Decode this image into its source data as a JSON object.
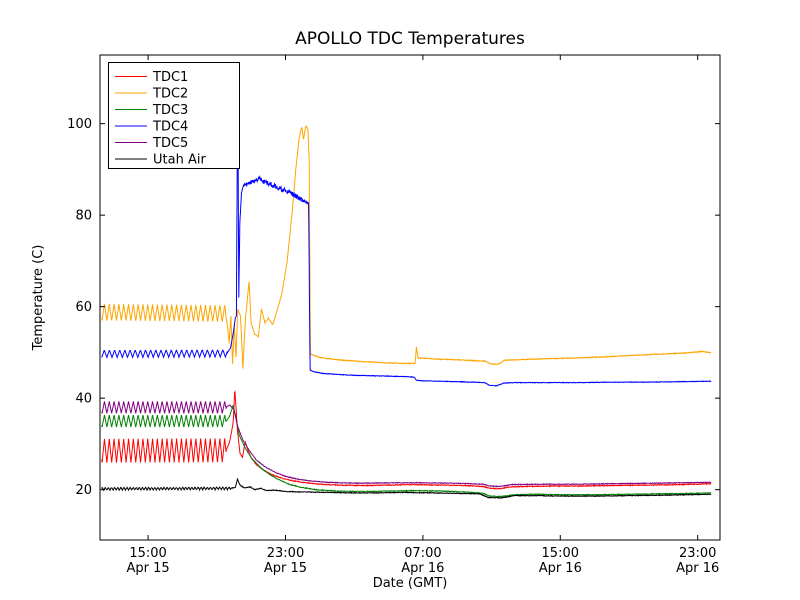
{
  "chart_data": {
    "type": "line",
    "title": "APOLLO TDC Temperatures",
    "xlabel": "Date (GMT)",
    "ylabel": "Temperature (C)",
    "xlim": [
      12.2,
      48.3
    ],
    "ylim": [
      9,
      115
    ],
    "x_unit": "hours since Apr 15 00:00 GMT",
    "grid": false,
    "legend_position": "upper left",
    "x_ticks": [
      {
        "hour": 15,
        "time": "15:00",
        "date": "Apr 15"
      },
      {
        "hour": 23,
        "time": "23:00",
        "date": "Apr 15"
      },
      {
        "hour": 31,
        "time": "07:00",
        "date": "Apr 16"
      },
      {
        "hour": 39,
        "time": "15:00",
        "date": "Apr 16"
      },
      {
        "hour": 47,
        "time": "23:00",
        "date": "Apr 16"
      }
    ],
    "y_ticks": [
      20,
      40,
      60,
      80,
      100
    ],
    "series": [
      {
        "name": "TDC1",
        "color": "#ff0000",
        "oscillation": {
          "until": 19.55,
          "amplitude": 2.6,
          "period": 0.28
        },
        "noise": [
          {
            "from": 19.55,
            "to": 47.8,
            "amp": 0.08
          }
        ],
        "anchors": [
          [
            12.3,
            28.5
          ],
          [
            19.55,
            28.6
          ],
          [
            19.75,
            30.5
          ],
          [
            19.95,
            34.5
          ],
          [
            20.05,
            42
          ],
          [
            20.2,
            33
          ],
          [
            20.35,
            28
          ],
          [
            20.5,
            27
          ],
          [
            20.65,
            30.5
          ],
          [
            20.8,
            28.8
          ],
          [
            21.0,
            27
          ],
          [
            21.3,
            25.5
          ],
          [
            21.7,
            24.3
          ],
          [
            22.2,
            23.3
          ],
          [
            22.8,
            22.5
          ],
          [
            23.5,
            21.9
          ],
          [
            24.2,
            21.5
          ],
          [
            25.0,
            21.2
          ],
          [
            26.0,
            21.0
          ],
          [
            27.5,
            20.9
          ],
          [
            29.0,
            21.0
          ],
          [
            30.5,
            21.1
          ],
          [
            32.0,
            21.0
          ],
          [
            33.5,
            20.9
          ],
          [
            34.5,
            20.7
          ],
          [
            34.9,
            20.3
          ],
          [
            35.5,
            20.2
          ],
          [
            36.1,
            20.6
          ],
          [
            37.0,
            20.7
          ],
          [
            38.5,
            20.8
          ],
          [
            40.0,
            20.8
          ],
          [
            42.0,
            20.9
          ],
          [
            44.0,
            21.0
          ],
          [
            46.0,
            21.1
          ],
          [
            47.8,
            21.3
          ]
        ]
      },
      {
        "name": "TDC2",
        "color": "#ffa500",
        "oscillation": {
          "until": 19.5,
          "amplitude": 1.8,
          "period": 0.28
        },
        "noise": [
          {
            "from": 19.5,
            "to": 47.8,
            "amp": 0.08
          }
        ],
        "anchors": [
          [
            12.3,
            58.8
          ],
          [
            19.5,
            58.5
          ],
          [
            19.62,
            56
          ],
          [
            19.72,
            52
          ],
          [
            19.82,
            58
          ],
          [
            19.92,
            47.5
          ],
          [
            20.02,
            56
          ],
          [
            20.12,
            49
          ],
          [
            20.22,
            59.5
          ],
          [
            20.38,
            58
          ],
          [
            20.52,
            46.5
          ],
          [
            20.66,
            57
          ],
          [
            20.88,
            65.5
          ],
          [
            21.0,
            56.5
          ],
          [
            21.2,
            54
          ],
          [
            21.42,
            53.5
          ],
          [
            21.6,
            59.5
          ],
          [
            21.8,
            56.5
          ],
          [
            22.0,
            57.5
          ],
          [
            22.25,
            56
          ],
          [
            22.5,
            59
          ],
          [
            22.8,
            63
          ],
          [
            23.1,
            70
          ],
          [
            23.4,
            81
          ],
          [
            23.6,
            90
          ],
          [
            23.8,
            97
          ],
          [
            23.95,
            99.3
          ],
          [
            24.05,
            96.5
          ],
          [
            24.18,
            99.5
          ],
          [
            24.3,
            99
          ],
          [
            24.38,
            92
          ],
          [
            24.45,
            49.6
          ],
          [
            25.0,
            48.9
          ],
          [
            26.0,
            48.4
          ],
          [
            27.0,
            48.1
          ],
          [
            28.0,
            47.9
          ],
          [
            29.0,
            47.7
          ],
          [
            30.0,
            47.6
          ],
          [
            30.55,
            47.6
          ],
          [
            30.62,
            51.2
          ],
          [
            30.72,
            48.8
          ],
          [
            31.2,
            48.7
          ],
          [
            32.0,
            48.5
          ],
          [
            33.0,
            48.4
          ],
          [
            34.0,
            48.2
          ],
          [
            34.6,
            48.1
          ],
          [
            34.95,
            47.5
          ],
          [
            35.4,
            47.4
          ],
          [
            35.75,
            48.3
          ],
          [
            36.5,
            48.4
          ],
          [
            38.0,
            48.6
          ],
          [
            40.0,
            48.8
          ],
          [
            42.0,
            49.1
          ],
          [
            44.0,
            49.5
          ],
          [
            46.0,
            49.8
          ],
          [
            47.3,
            50.2
          ],
          [
            47.8,
            49.9
          ]
        ]
      },
      {
        "name": "TDC3",
        "color": "#008000",
        "oscillation": {
          "until": 19.55,
          "amplitude": 1.3,
          "period": 0.28
        },
        "noise": [
          {
            "from": 19.55,
            "to": 47.8,
            "amp": 0.07
          }
        ],
        "anchors": [
          [
            12.3,
            35.0
          ],
          [
            19.55,
            35.0
          ],
          [
            19.75,
            36.0
          ],
          [
            19.95,
            38.5
          ],
          [
            20.1,
            36.0
          ],
          [
            20.3,
            32.0
          ],
          [
            20.6,
            29.5
          ],
          [
            21.0,
            27.0
          ],
          [
            21.5,
            25.0
          ],
          [
            22.0,
            23.5
          ],
          [
            22.6,
            22.2
          ],
          [
            23.2,
            21.2
          ],
          [
            23.9,
            20.5
          ],
          [
            24.8,
            20.0
          ],
          [
            26.0,
            19.7
          ],
          [
            27.5,
            19.6
          ],
          [
            29.0,
            19.7
          ],
          [
            30.5,
            19.8
          ],
          [
            32.0,
            19.7
          ],
          [
            33.5,
            19.5
          ],
          [
            34.5,
            19.2
          ],
          [
            34.9,
            18.6
          ],
          [
            35.6,
            18.5
          ],
          [
            36.3,
            18.9
          ],
          [
            37.5,
            19.0
          ],
          [
            39.0,
            18.9
          ],
          [
            41.0,
            18.9
          ],
          [
            43.0,
            19.0
          ],
          [
            45.0,
            19.1
          ],
          [
            47.0,
            19.2
          ],
          [
            47.8,
            19.3
          ]
        ]
      },
      {
        "name": "TDC4",
        "color": "#0000ff",
        "oscillation": {
          "until": 19.6,
          "amplitude": 0.8,
          "period": 0.3
        },
        "noise": [
          {
            "from": 20.44,
            "to": 24.35,
            "amp": 0.5
          },
          {
            "from": 24.43,
            "to": 47.8,
            "amp": 0.06
          }
        ],
        "anchors": [
          [
            12.3,
            49.7
          ],
          [
            19.6,
            49.8
          ],
          [
            19.8,
            51.0
          ],
          [
            19.95,
            54.0
          ],
          [
            20.08,
            57.5
          ],
          [
            20.14,
            58.0
          ],
          [
            20.17,
            78.0
          ],
          [
            20.2,
            100.0
          ],
          [
            20.24,
            96.0
          ],
          [
            20.28,
            62.0
          ],
          [
            20.34,
            78.0
          ],
          [
            20.44,
            85.0
          ],
          [
            20.6,
            86.5
          ],
          [
            20.9,
            87.0
          ],
          [
            21.2,
            87.5
          ],
          [
            21.5,
            88.0
          ],
          [
            21.8,
            87.2
          ],
          [
            22.1,
            86.8
          ],
          [
            22.4,
            86.3
          ],
          [
            22.7,
            85.8
          ],
          [
            23.0,
            85.3
          ],
          [
            23.3,
            84.8
          ],
          [
            23.6,
            84.2
          ],
          [
            23.9,
            83.4
          ],
          [
            24.1,
            83.0
          ],
          [
            24.35,
            82.8
          ],
          [
            24.43,
            46.2
          ],
          [
            24.6,
            45.8
          ],
          [
            25.2,
            45.4
          ],
          [
            26.0,
            45.2
          ],
          [
            27.0,
            45.0
          ],
          [
            28.0,
            44.9
          ],
          [
            29.0,
            44.8
          ],
          [
            30.0,
            44.7
          ],
          [
            30.5,
            44.6
          ],
          [
            30.62,
            43.9
          ],
          [
            31.0,
            43.8
          ],
          [
            32.0,
            43.7
          ],
          [
            33.0,
            43.6
          ],
          [
            34.0,
            43.5
          ],
          [
            34.6,
            43.4
          ],
          [
            34.88,
            42.8
          ],
          [
            35.3,
            42.7
          ],
          [
            35.7,
            43.3
          ],
          [
            36.5,
            43.4
          ],
          [
            38.0,
            43.4
          ],
          [
            40.0,
            43.4
          ],
          [
            42.0,
            43.5
          ],
          [
            44.0,
            43.5
          ],
          [
            46.0,
            43.6
          ],
          [
            47.8,
            43.7
          ]
        ]
      },
      {
        "name": "TDC5",
        "color": "#800080",
        "oscillation": {
          "until": 19.55,
          "amplitude": 1.3,
          "period": 0.28
        },
        "noise": [
          {
            "from": 19.55,
            "to": 47.8,
            "amp": 0.07
          }
        ],
        "anchors": [
          [
            12.3,
            38.0
          ],
          [
            19.55,
            38.0
          ],
          [
            19.75,
            38.5
          ],
          [
            20.0,
            37.5
          ],
          [
            20.2,
            34.0
          ],
          [
            20.5,
            31.0
          ],
          [
            20.9,
            28.5
          ],
          [
            21.3,
            26.5
          ],
          [
            21.8,
            25.0
          ],
          [
            22.4,
            23.8
          ],
          [
            23.0,
            22.9
          ],
          [
            23.7,
            22.3
          ],
          [
            24.5,
            21.9
          ],
          [
            25.5,
            21.6
          ],
          [
            27.0,
            21.4
          ],
          [
            29.0,
            21.5
          ],
          [
            31.0,
            21.5
          ],
          [
            33.0,
            21.4
          ],
          [
            34.5,
            21.2
          ],
          [
            34.9,
            20.8
          ],
          [
            35.5,
            20.7
          ],
          [
            36.2,
            21.1
          ],
          [
            38.0,
            21.2
          ],
          [
            40.0,
            21.2
          ],
          [
            42.0,
            21.3
          ],
          [
            44.0,
            21.4
          ],
          [
            46.0,
            21.5
          ],
          [
            47.8,
            21.6
          ]
        ]
      },
      {
        "name": "Utah Air",
        "color": "#000000",
        "oscillation": {
          "until": 19.8,
          "amplitude": 0.28,
          "period": 0.18
        },
        "noise": [
          {
            "from": 12.3,
            "to": 47.8,
            "amp": 0.07
          }
        ],
        "anchors": [
          [
            12.3,
            20.2
          ],
          [
            19.8,
            20.3
          ],
          [
            20.08,
            20.5
          ],
          [
            20.2,
            22.3
          ],
          [
            20.35,
            21.0
          ],
          [
            20.6,
            20.4
          ],
          [
            20.95,
            20.6
          ],
          [
            21.2,
            20.0
          ],
          [
            21.55,
            20.3
          ],
          [
            21.9,
            19.8
          ],
          [
            22.4,
            19.9
          ],
          [
            23.0,
            19.6
          ],
          [
            24.0,
            19.5
          ],
          [
            25.5,
            19.4
          ],
          [
            27.0,
            19.3
          ],
          [
            28.5,
            19.3
          ],
          [
            30.0,
            19.4
          ],
          [
            31.5,
            19.3
          ],
          [
            33.0,
            19.2
          ],
          [
            34.3,
            19.1
          ],
          [
            34.8,
            18.3
          ],
          [
            35.6,
            18.2
          ],
          [
            36.3,
            18.7
          ],
          [
            37.5,
            18.7
          ],
          [
            39.0,
            18.6
          ],
          [
            41.0,
            18.6
          ],
          [
            43.0,
            18.7
          ],
          [
            45.0,
            18.8
          ],
          [
            47.8,
            19.0
          ]
        ]
      }
    ]
  }
}
